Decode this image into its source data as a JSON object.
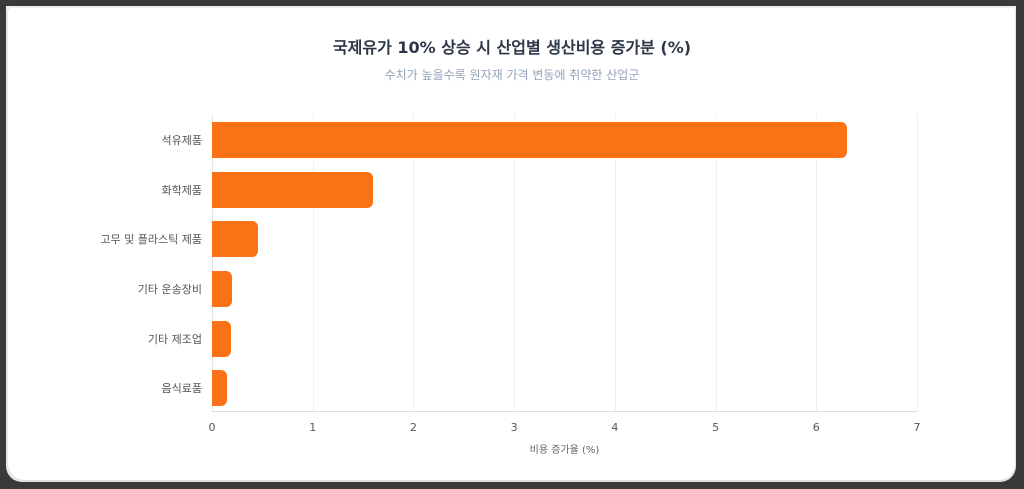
{
  "chart_data": {
    "type": "bar",
    "orientation": "horizontal",
    "title": "국제유가 10% 상승 시 산업별 생산비용 증가분 (%)",
    "subtitle": "수치가 높을수록 원자재 가격 변동에 취약한 산업군",
    "xlabel": "비용 증가율 (%)",
    "ylabel": "",
    "xlim": [
      0,
      7
    ],
    "xticks": [
      "0",
      "1",
      "2",
      "3",
      "4",
      "5",
      "6",
      "7"
    ],
    "grid": true,
    "legend": null,
    "bar_color": "#f97316",
    "categories": [
      "석유제품",
      "화학제품",
      "고무 및 플라스틱 제품",
      "기타 운송장비",
      "기타 제조업",
      "음식료품"
    ],
    "values": [
      6.3,
      1.6,
      0.46,
      0.2,
      0.19,
      0.15
    ]
  }
}
